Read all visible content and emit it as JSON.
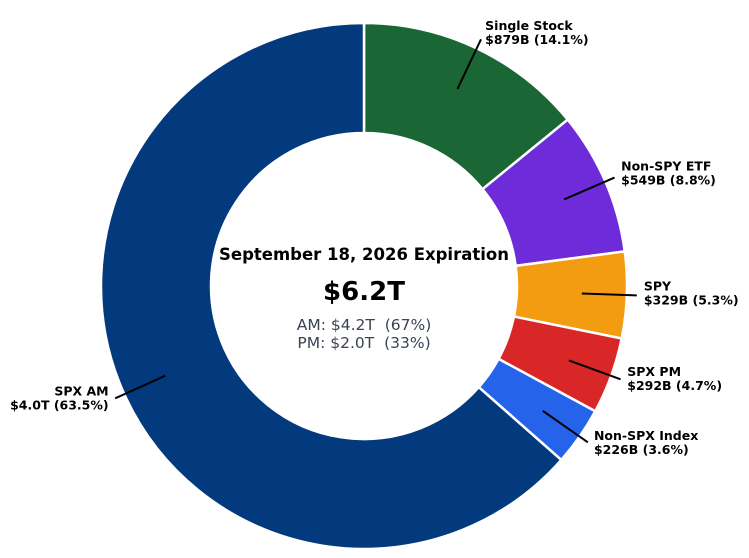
{
  "chart_data": {
    "type": "pie",
    "subtype": "donut",
    "title": "September 18, 2026 Expiration",
    "center": {
      "total": "$6.2T",
      "am_line": "AM: $4.2T  (67%)",
      "pm_line": "PM: $2.0T  (33%)"
    },
    "slices": [
      {
        "name": "Single Stock",
        "value_label": "$879B (14.1%)",
        "value": 879,
        "percent": 14.1,
        "color": "#1a6634"
      },
      {
        "name": "Non-SPY ETF",
        "value_label": "$549B (8.8%)",
        "value": 549,
        "percent": 8.8,
        "color": "#6d2bd9"
      },
      {
        "name": "SPY",
        "value_label": "$329B (5.3%)",
        "value": 329,
        "percent": 5.3,
        "color": "#f39c12"
      },
      {
        "name": "SPX PM",
        "value_label": "$292B (4.7%)",
        "value": 292,
        "percent": 4.7,
        "color": "#d92626"
      },
      {
        "name": "Non-SPX Index",
        "value_label": "$226B (3.6%)",
        "value": 226,
        "percent": 3.6,
        "color": "#2563eb"
      },
      {
        "name": "SPX AM",
        "value_label": "$4.0T (63.5%)",
        "value": 4000,
        "percent": 63.5,
        "color": "#033a7d"
      }
    ]
  }
}
